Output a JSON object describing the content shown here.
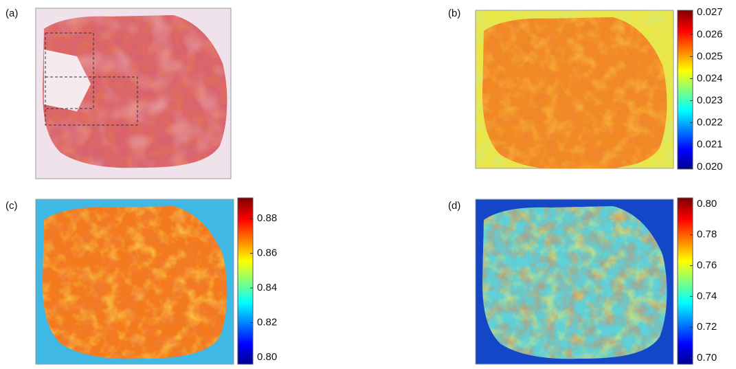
{
  "panels": [
    {
      "label": "(a)"
    },
    {
      "label": "(b)",
      "colorbar": {
        "lim": [
          0.0199,
          0.0271
        ],
        "ticks": [
          {
            "value": 0.02,
            "label": "0.020"
          },
          0.021,
          0.022,
          0.023,
          0.024,
          0.025,
          0.026,
          0.027
        ]
      }
    },
    {
      "label": "(c)",
      "colorbar": {
        "lim": [
          0.796,
          0.892
        ],
        "ticks": [
          {
            "value": 0.8,
            "label": "0.80"
          },
          0.82,
          0.84,
          0.86,
          0.88
        ]
      }
    },
    {
      "label": "(d)",
      "colorbar": {
        "lim": [
          0.696,
          0.804
        ],
        "ticks": [
          {
            "value": 0.7,
            "label": "0.70"
          },
          0.72,
          0.74,
          0.76,
          0.78,
          {
            "value": 0.8,
            "label": "0.80"
          }
        ]
      }
    }
  ]
}
